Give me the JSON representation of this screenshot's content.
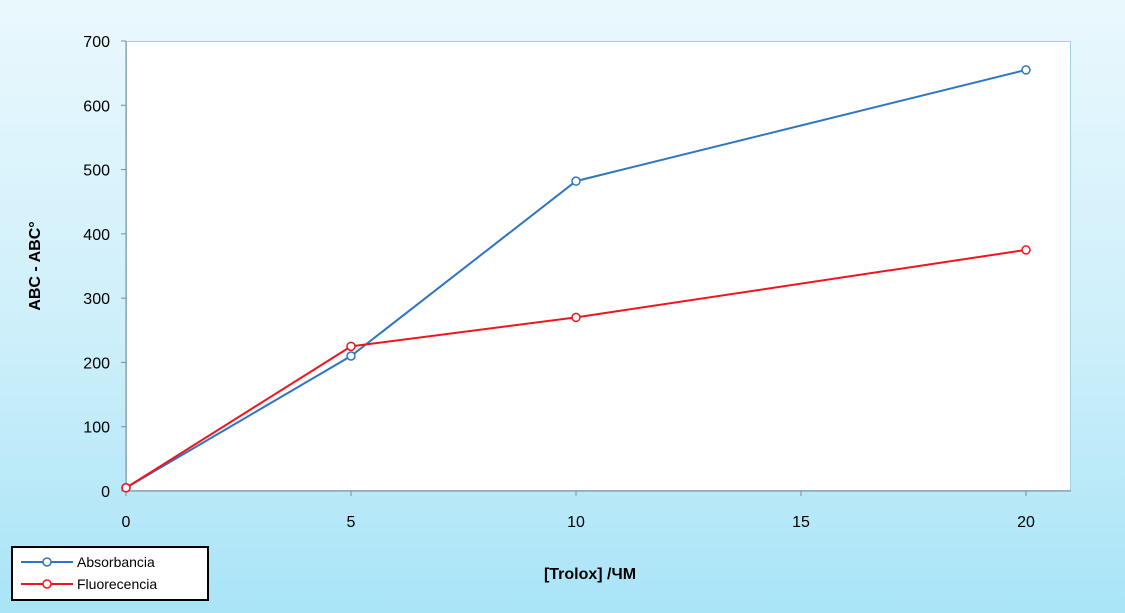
{
  "chart_data": {
    "type": "line",
    "title": "",
    "xlabel": "[Trolox] /ЧM",
    "ylabel": "ABC - ABC°",
    "x": [
      0,
      5,
      10,
      20
    ],
    "xlim": [
      0,
      21
    ],
    "ylim": [
      0,
      700
    ],
    "xticks": [
      "0",
      "5",
      "10",
      "15",
      "20"
    ],
    "yticks": [
      "0",
      "100",
      "200",
      "300",
      "400",
      "500",
      "600",
      "700"
    ],
    "grid": false,
    "legend_position": "bottom-left",
    "series": [
      {
        "name": "Absorbancia",
        "color": "#2e75c2",
        "values": [
          5,
          210,
          482,
          655
        ]
      },
      {
        "name": "Fluorecencia",
        "color": "#f0141e",
        "values": [
          5,
          225,
          270,
          375
        ]
      }
    ]
  }
}
